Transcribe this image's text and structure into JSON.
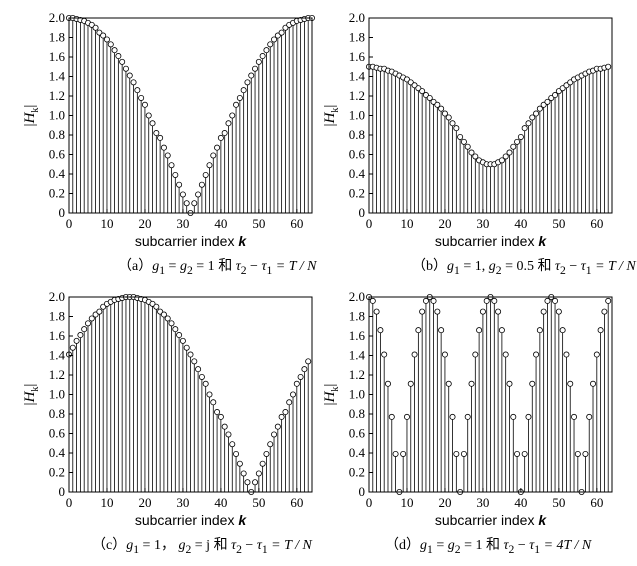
{
  "chart_data": [
    {
      "id": "a",
      "type": "stem",
      "ylabel": "|H_k|",
      "xlabel_text": "subcarrier index",
      "xlabel_var": "k",
      "xlim": [
        0,
        64
      ],
      "ylim": [
        0,
        2.0
      ],
      "xticks": [
        "0",
        "10",
        "20",
        "30",
        "40",
        "50",
        "60"
      ],
      "yticks": [
        "0",
        "0.2",
        "0.4",
        "0.6",
        "0.8",
        "1.0",
        "1.2",
        "1.4",
        "1.6",
        "1.8",
        "2.0"
      ],
      "n_points": 65,
      "model": {
        "g1": 1,
        "g2": 1,
        "g2_imag": 0,
        "delay": 1
      },
      "x": [
        0,
        1,
        2,
        3,
        4,
        5,
        6,
        7,
        8,
        9,
        10,
        11,
        12,
        13,
        14,
        15,
        16,
        17,
        18,
        19,
        20,
        21,
        22,
        23,
        24,
        25,
        26,
        27,
        28,
        29,
        30,
        31,
        32,
        33,
        34,
        35,
        36,
        37,
        38,
        39,
        40,
        41,
        42,
        43,
        44,
        45,
        46,
        47,
        48,
        49,
        50,
        51,
        52,
        53,
        54,
        55,
        56,
        57,
        58,
        59,
        60,
        61,
        62,
        63,
        64
      ],
      "values": [
        2.0,
        2.0,
        1.99,
        1.98,
        1.97,
        1.95,
        1.93,
        1.9,
        1.85,
        1.82,
        1.78,
        1.73,
        1.67,
        1.61,
        1.55,
        1.48,
        1.41,
        1.34,
        1.26,
        1.18,
        1.11,
        1.0,
        0.92,
        0.82,
        0.77,
        0.67,
        0.59,
        0.49,
        0.39,
        0.29,
        0.19,
        0.1,
        0.0,
        0.1,
        0.19,
        0.29,
        0.39,
        0.49,
        0.59,
        0.67,
        0.77,
        0.82,
        0.92,
        1.0,
        1.11,
        1.18,
        1.26,
        1.34,
        1.41,
        1.48,
        1.55,
        1.61,
        1.67,
        1.73,
        1.78,
        1.82,
        1.85,
        1.9,
        1.93,
        1.95,
        1.97,
        1.98,
        1.99,
        2.0,
        2.0
      ],
      "caption": "（a）g1 = g2 = 1 和 τ2 − τ1 = T / N"
    },
    {
      "id": "b",
      "type": "stem",
      "ylabel": "|H_k|",
      "xlabel_text": "subcarrier index",
      "xlabel_var": "k",
      "xlim": [
        0,
        64
      ],
      "ylim": [
        0,
        2.0
      ],
      "xticks": [
        "0",
        "10",
        "20",
        "30",
        "40",
        "50",
        "60"
      ],
      "yticks": [
        "0",
        "0.2",
        "0.4",
        "0.6",
        "0.8",
        "1.0",
        "1.2",
        "1.4",
        "1.6",
        "1.8",
        "2.0"
      ],
      "n_points": 64,
      "model": {
        "g1": 1,
        "g2": 0.5,
        "g2_imag": 0,
        "delay": 1
      },
      "x": [
        0,
        1,
        2,
        3,
        4,
        5,
        6,
        7,
        8,
        9,
        10,
        11,
        12,
        13,
        14,
        15,
        16,
        17,
        18,
        19,
        20,
        21,
        22,
        23,
        24,
        25,
        26,
        27,
        28,
        29,
        30,
        31,
        32,
        33,
        34,
        35,
        36,
        37,
        38,
        39,
        40,
        41,
        42,
        43,
        44,
        45,
        46,
        47,
        48,
        49,
        50,
        51,
        52,
        53,
        54,
        55,
        56,
        57,
        58,
        59,
        60,
        61,
        62,
        63
      ],
      "values": [
        1.5,
        1.5,
        1.49,
        1.48,
        1.48,
        1.46,
        1.45,
        1.43,
        1.41,
        1.39,
        1.37,
        1.34,
        1.31,
        1.28,
        1.25,
        1.21,
        1.18,
        1.14,
        1.11,
        1.07,
        1.02,
        0.98,
        0.92,
        0.87,
        0.78,
        0.73,
        0.68,
        0.62,
        0.58,
        0.54,
        0.52,
        0.5,
        0.5,
        0.5,
        0.52,
        0.54,
        0.58,
        0.62,
        0.68,
        0.73,
        0.78,
        0.87,
        0.92,
        0.98,
        1.02,
        1.07,
        1.11,
        1.14,
        1.18,
        1.21,
        1.25,
        1.28,
        1.31,
        1.34,
        1.37,
        1.39,
        1.41,
        1.43,
        1.45,
        1.46,
        1.48,
        1.48,
        1.49,
        1.5
      ],
      "caption": "（b）g1 = 1, g2 = 0.5 和 τ2 − τ1 = T / N"
    },
    {
      "id": "c",
      "type": "stem",
      "ylabel": "|H_k|",
      "xlabel_text": "subcarrier index",
      "xlabel_var": "k",
      "xlim": [
        0,
        64
      ],
      "ylim": [
        0,
        2.0
      ],
      "xticks": [
        "0",
        "10",
        "20",
        "30",
        "40",
        "50",
        "60"
      ],
      "yticks": [
        "0",
        "0.2",
        "0.4",
        "0.6",
        "0.8",
        "1.0",
        "1.2",
        "1.4",
        "1.6",
        "1.8",
        "2.0"
      ],
      "n_points": 64,
      "model": {
        "g1": 1,
        "g2": 0,
        "g2_imag": 1,
        "delay": 1
      },
      "x": [
        0,
        1,
        2,
        3,
        4,
        5,
        6,
        7,
        8,
        9,
        10,
        11,
        12,
        13,
        14,
        15,
        16,
        17,
        18,
        19,
        20,
        21,
        22,
        23,
        24,
        25,
        26,
        27,
        28,
        29,
        30,
        31,
        32,
        33,
        34,
        35,
        36,
        37,
        38,
        39,
        40,
        41,
        42,
        43,
        44,
        45,
        46,
        47,
        48,
        49,
        50,
        51,
        52,
        53,
        54,
        55,
        56,
        57,
        58,
        59,
        60,
        61,
        62,
        63
      ],
      "values": [
        1.41,
        1.48,
        1.55,
        1.61,
        1.67,
        1.73,
        1.78,
        1.82,
        1.85,
        1.9,
        1.93,
        1.95,
        1.97,
        1.98,
        1.99,
        2.0,
        2.0,
        2.0,
        1.99,
        1.98,
        1.97,
        1.95,
        1.93,
        1.9,
        1.85,
        1.82,
        1.78,
        1.73,
        1.67,
        1.61,
        1.55,
        1.48,
        1.41,
        1.34,
        1.26,
        1.18,
        1.11,
        1.0,
        0.92,
        0.82,
        0.77,
        0.67,
        0.59,
        0.49,
        0.39,
        0.29,
        0.19,
        0.1,
        0.0,
        0.1,
        0.19,
        0.29,
        0.39,
        0.49,
        0.59,
        0.67,
        0.77,
        0.82,
        0.92,
        1.0,
        1.11,
        1.18,
        1.26,
        1.34
      ],
      "caption": "（c）g1 = 1， g2 = j 和 τ2 − τ1 = T / N"
    },
    {
      "id": "d",
      "type": "stem",
      "ylabel": "|H_k|",
      "xlabel_text": "subcarrier index",
      "xlabel_var": "k",
      "xlim": [
        0,
        64
      ],
      "ylim": [
        0,
        2.0
      ],
      "xticks": [
        "0",
        "10",
        "20",
        "30",
        "40",
        "50",
        "60"
      ],
      "yticks": [
        "0",
        "0.2",
        "0.4",
        "0.6",
        "0.8",
        "1.0",
        "1.2",
        "1.4",
        "1.6",
        "1.8",
        "2.0"
      ],
      "n_points": 64,
      "model": {
        "g1": 1,
        "g2": 1,
        "g2_imag": 0,
        "delay": 4
      },
      "x": [
        0,
        1,
        2,
        3,
        4,
        5,
        6,
        7,
        8,
        9,
        10,
        11,
        12,
        13,
        14,
        15,
        16,
        17,
        18,
        19,
        20,
        21,
        22,
        23,
        24,
        25,
        26,
        27,
        28,
        29,
        30,
        31,
        32,
        33,
        34,
        35,
        36,
        37,
        38,
        39,
        40,
        41,
        42,
        43,
        44,
        45,
        46,
        47,
        48,
        49,
        50,
        51,
        52,
        53,
        54,
        55,
        56,
        57,
        58,
        59,
        60,
        61,
        62,
        63
      ],
      "values": [
        2.0,
        1.96,
        1.85,
        1.66,
        1.41,
        1.11,
        0.77,
        0.39,
        0.0,
        0.39,
        0.77,
        1.11,
        1.41,
        1.66,
        1.85,
        1.96,
        2.0,
        1.96,
        1.85,
        1.66,
        1.41,
        1.11,
        0.77,
        0.39,
        0.0,
        0.39,
        0.77,
        1.11,
        1.41,
        1.66,
        1.85,
        1.96,
        2.0,
        1.96,
        1.85,
        1.66,
        1.41,
        1.11,
        0.77,
        0.39,
        0.0,
        0.39,
        0.77,
        1.11,
        1.41,
        1.66,
        1.85,
        1.96,
        2.0,
        1.96,
        1.85,
        1.66,
        1.41,
        1.11,
        0.77,
        0.39,
        0.0,
        0.39,
        0.77,
        1.11,
        1.41,
        1.66,
        1.85,
        1.96
      ],
      "caption": "（d）g1 = g2 = 1 和 τ2 − τ1 = 4T / N"
    }
  ],
  "captions": {
    "a": {
      "open": "（a）",
      "g": "g",
      "s1": "1",
      "eq1": " = ",
      "s2": "2",
      "eq2": " = 1 ",
      "he": "和",
      "tau": "τ",
      "rest": " − ",
      "rhs": " = T / N"
    },
    "b": {
      "open": "（b）",
      "g": "g",
      "s1": "1",
      "eq1": " = 1, ",
      "s2": "2",
      "eq2": " = 0.5 ",
      "he": "和",
      "tau": "τ",
      "rest": " − ",
      "rhs": " = T / N"
    },
    "c": {
      "open": "（c）",
      "g": "g",
      "s1": "1",
      "eq1": " = 1，  ",
      "s2": "2",
      "eq2": " = j ",
      "he": "和",
      "tau": "τ",
      "rest": " − ",
      "rhs": " = T / N"
    },
    "d": {
      "open": "（d）",
      "g": "g",
      "s1": "1",
      "eq1": " = ",
      "s2": "2",
      "eq2": " = 1 ",
      "he": "和",
      "tau": "τ",
      "rest": " − ",
      "rhs": " = 4T / N"
    }
  }
}
